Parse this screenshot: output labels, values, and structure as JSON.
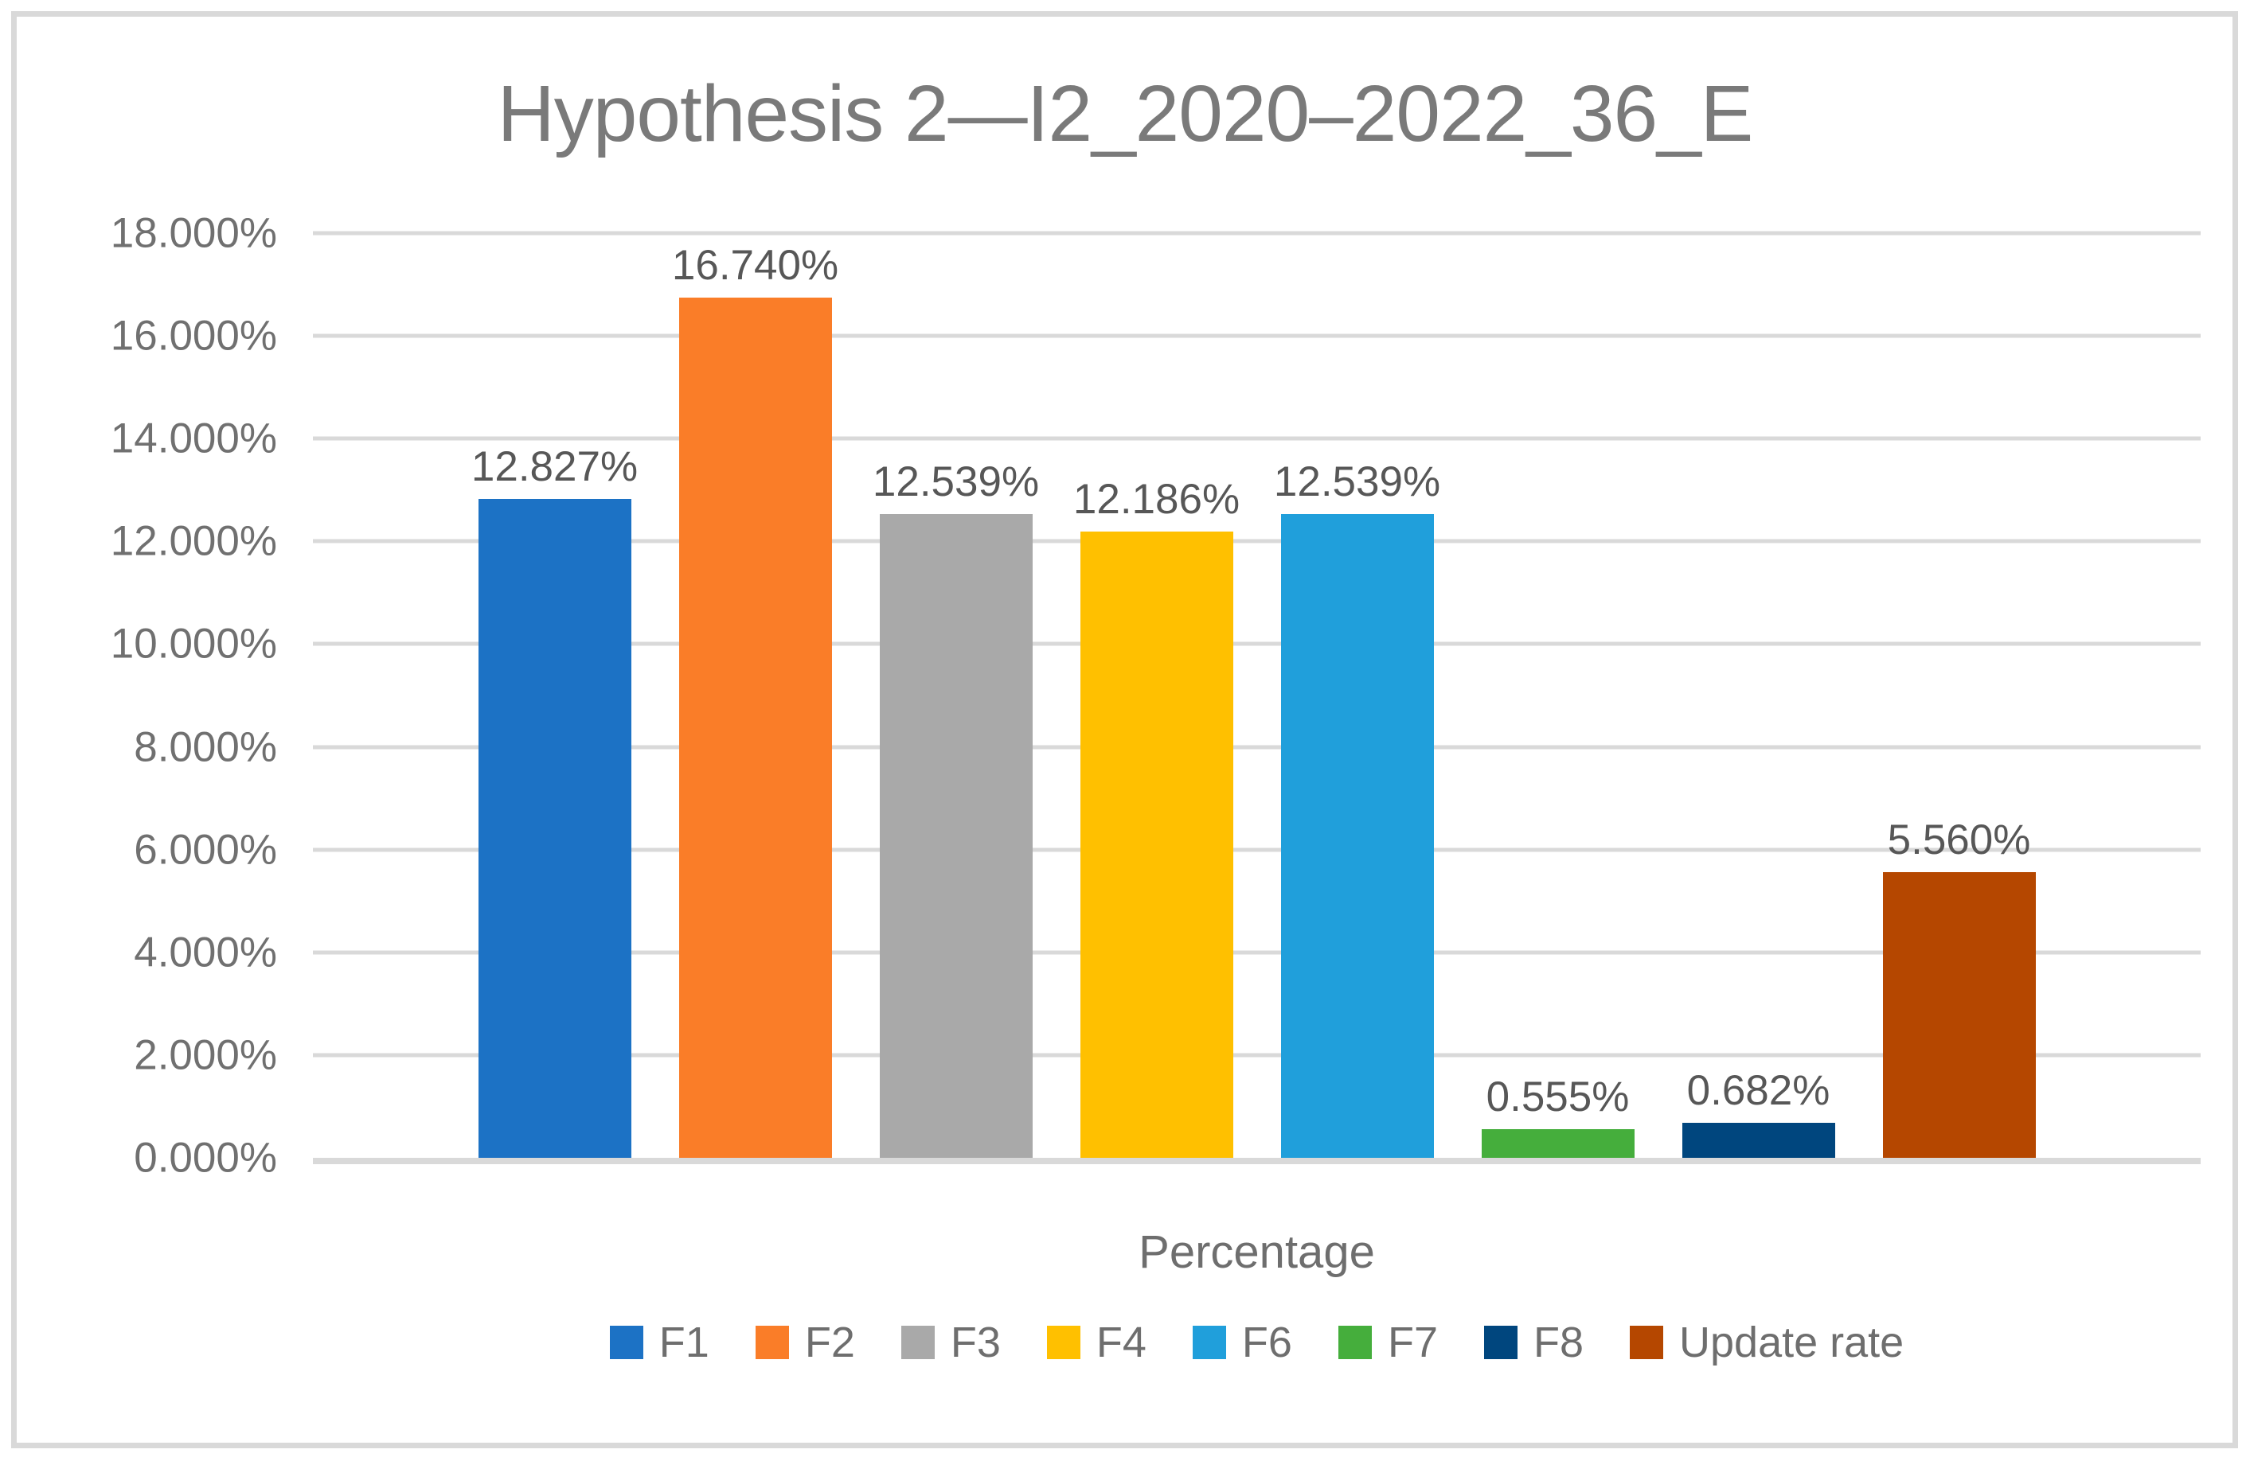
{
  "chart_data": {
    "type": "bar",
    "title": "Hypothesis 2—I2_2020–2022_36_E",
    "xlabel": "Percentage",
    "ylabel": "",
    "ylim": [
      0,
      18
    ],
    "ytick_step": 2,
    "grid": true,
    "legend_position": "bottom",
    "yticks": [
      {
        "value": 0,
        "label": "0.000%"
      },
      {
        "value": 2,
        "label": "2.000%"
      },
      {
        "value": 4,
        "label": "4.000%"
      },
      {
        "value": 6,
        "label": "6.000%"
      },
      {
        "value": 8,
        "label": "8.000%"
      },
      {
        "value": 10,
        "label": "10.000%"
      },
      {
        "value": 12,
        "label": "12.000%"
      },
      {
        "value": 14,
        "label": "14.000%"
      },
      {
        "value": 16,
        "label": "16.000%"
      },
      {
        "value": 18,
        "label": "18.000%"
      }
    ],
    "series": [
      {
        "name": "F1",
        "value": 12.827,
        "data_label": "12.827%",
        "color": "#1C72C5"
      },
      {
        "name": "F2",
        "value": 16.74,
        "data_label": "16.740%",
        "color": "#FA7D28"
      },
      {
        "name": "F3",
        "value": 12.539,
        "data_label": "12.539%",
        "color": "#A9A9A9"
      },
      {
        "name": "F4",
        "value": 12.186,
        "data_label": "12.186%",
        "color": "#FFC000"
      },
      {
        "name": "F6",
        "value": 12.539,
        "data_label": "12.539%",
        "color": "#209FDB"
      },
      {
        "name": "F7",
        "value": 0.555,
        "data_label": "0.555%",
        "color": "#45AE3C"
      },
      {
        "name": "F8",
        "value": 0.682,
        "data_label": "0.682%",
        "color": "#00467E"
      },
      {
        "name": "Update rate",
        "value": 5.56,
        "data_label": "5.560%",
        "color": "#B54700"
      }
    ],
    "colors": {
      "background": "#FFFFFF",
      "frame_border": "#D9D9D9",
      "gridline": "#D9D9D9",
      "axis_line": "#D9D9D9",
      "title_text": "#7A7A7A",
      "tick_text": "#707070",
      "data_label_text": "#575757",
      "axis_title_text": "#6E6E6E",
      "legend_text": "#6E6E6E"
    }
  }
}
